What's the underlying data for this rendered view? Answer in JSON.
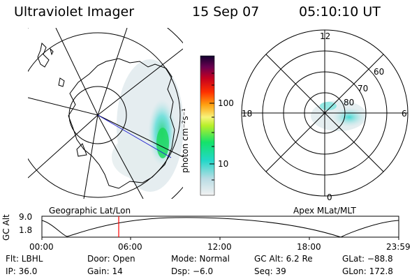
{
  "header": {
    "title": "Ultraviolet Imager",
    "date": "15 Sep 07",
    "time": "05:10:10 UT"
  },
  "colorbar": {
    "label": "photon cm⁻²s⁻¹",
    "ticks": [
      "100",
      "10"
    ]
  },
  "polar_plot": {
    "hour_labels": {
      "top": "12",
      "left": "18",
      "right": "6",
      "bottom": "0"
    },
    "lat_labels": [
      "60",
      "70",
      "80"
    ]
  },
  "orbit_panel": {
    "left_title": "Geographic Lat/Lon",
    "right_title": "Apex MLat/MLT",
    "axis_label": "GC Alt",
    "y_ticks": [
      "9.0",
      "1.8"
    ],
    "x_ticks": [
      "00:00",
      "06:00",
      "12:00",
      "18:00",
      "23:59"
    ],
    "marker_color": "#ff0000"
  },
  "info": {
    "filter": "Flt: LBHL",
    "door": "Door: Open",
    "mode": "Mode: Normal",
    "gc_alt": "GC Alt: 6.2 Re",
    "glat": "GLat: −88.8",
    "ip": "IP: 36.0",
    "gain": "Gain: 14",
    "dsp": "Dsp:   −6.0",
    "seq": "Seq: 39",
    "glon": "GLon: 172.8"
  }
}
